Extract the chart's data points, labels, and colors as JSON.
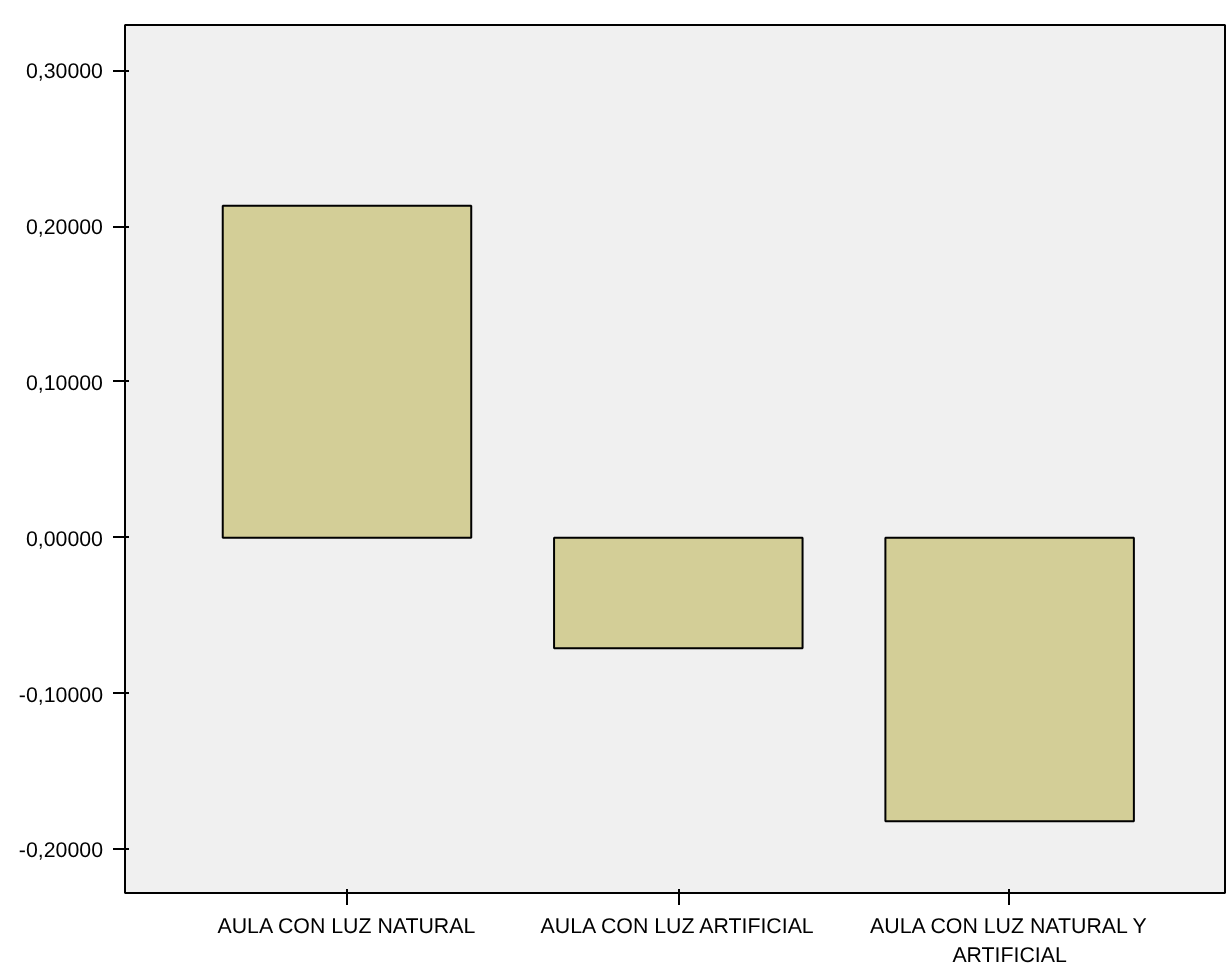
{
  "chart_data": {
    "type": "bar",
    "categories": [
      "AULA CON LUZ NATURAL",
      "AULA CON LUZ ARTIFICIAL",
      "AULA CON LUZ NATURAL Y ARTIFICIAL"
    ],
    "values": [
      0.213,
      -0.071,
      -0.182
    ],
    "color": "#d3ce97",
    "ylim": [
      -0.228,
      0.329
    ],
    "yticks": [
      {
        "value": -0.2,
        "label": "-0,20000"
      },
      {
        "value": -0.1,
        "label": "-0,10000"
      },
      {
        "value": 0,
        "label": "0,00000"
      },
      {
        "value": 0.1,
        "label": "0,10000"
      },
      {
        "value": 0.2,
        "label": "0,20000"
      },
      {
        "value": 0.3,
        "label": "0,30000"
      }
    ],
    "grid": false
  }
}
